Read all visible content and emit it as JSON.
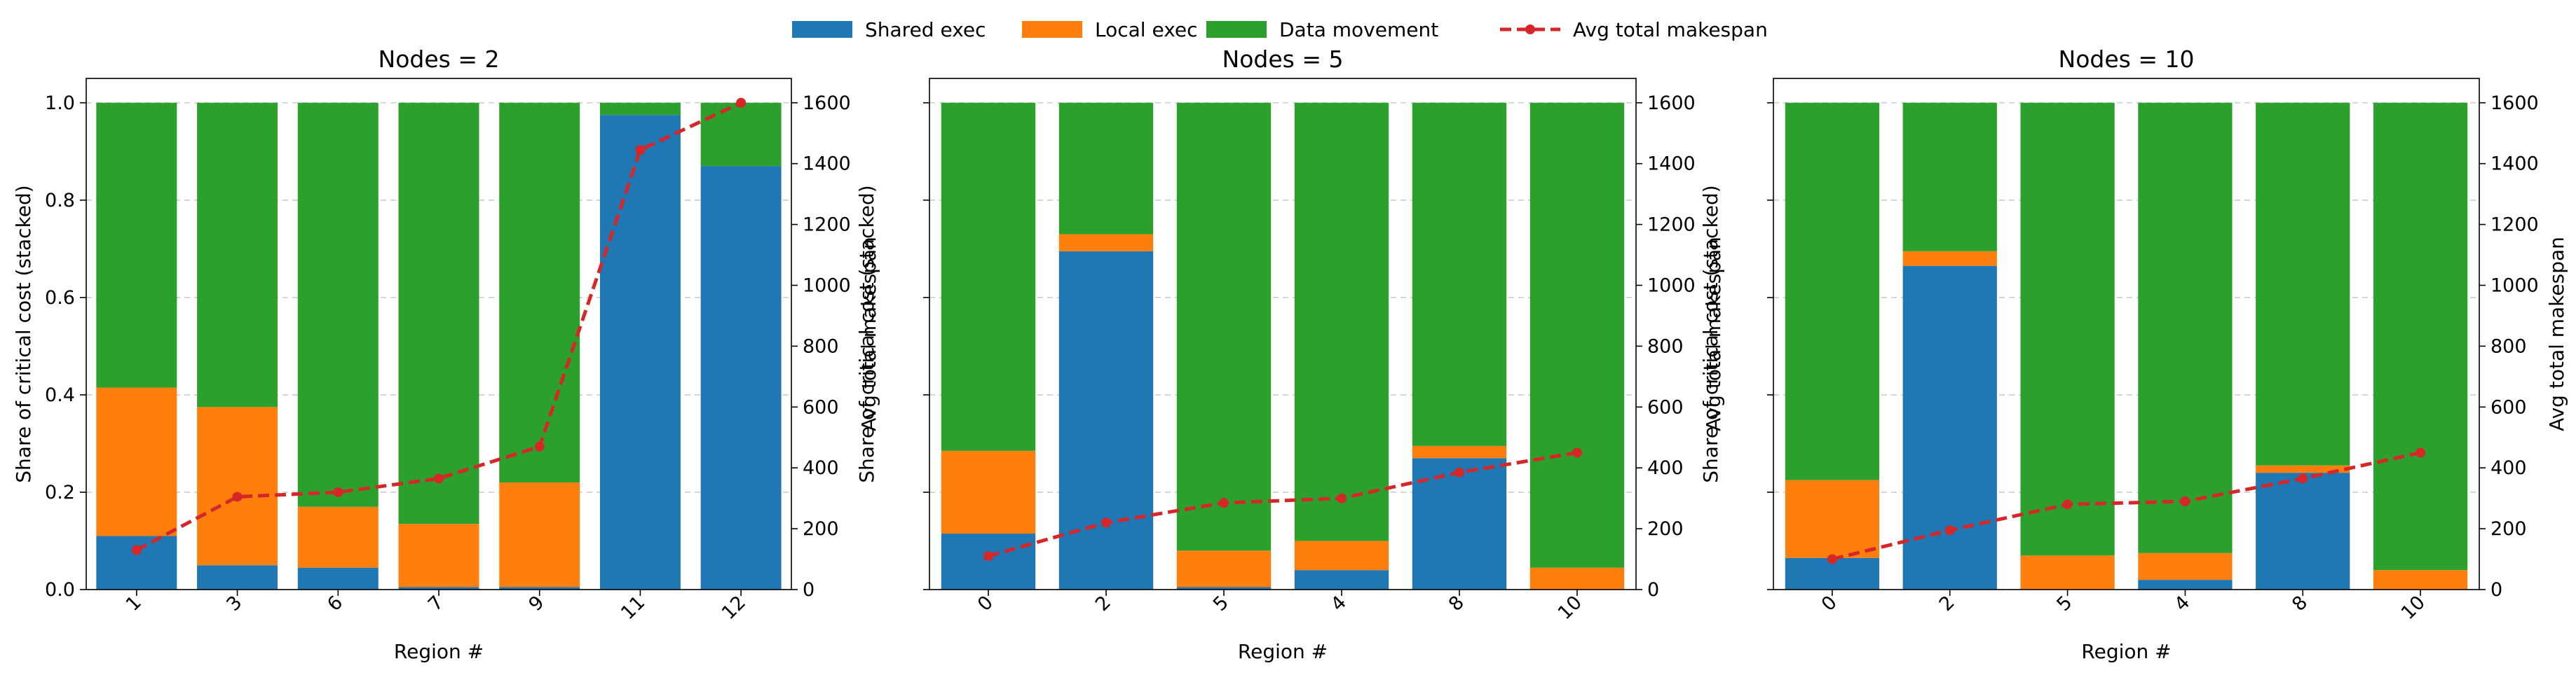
{
  "legend": {
    "placement": "top-center",
    "items": [
      {
        "label": "Shared exec",
        "color": "#1f77b4",
        "kind": "patch"
      },
      {
        "label": "Local exec",
        "color": "#ff7f0e",
        "kind": "patch"
      },
      {
        "label": "Data movement",
        "color": "#2ca02c",
        "kind": "patch"
      },
      {
        "label": "Avg total makespan",
        "color": "#d62728",
        "kind": "line"
      }
    ]
  },
  "chart_data": [
    {
      "type": "bar",
      "stacked": true,
      "title": "Nodes = 2",
      "xlabel": "Region #",
      "ylabel": "Share of critical cost (stacked)",
      "ylabel_right": "Avg total makespan",
      "ylim": [
        0,
        1.05
      ],
      "ylim_right": [
        0,
        1680
      ],
      "yticks": [
        "0.0",
        "0.2",
        "0.4",
        "0.6",
        "0.8",
        "1.0"
      ],
      "yticks_right": [
        "0",
        "200",
        "400",
        "600",
        "800",
        "1000",
        "1200",
        "1400",
        "1600"
      ],
      "grid": true,
      "categories": [
        "1",
        "3",
        "6",
        "7",
        "9",
        "11",
        "12"
      ],
      "series": [
        {
          "name": "Shared exec",
          "values": [
            0.11,
            0.05,
            0.045,
            0.005,
            0.005,
            0.975,
            0.87
          ]
        },
        {
          "name": "Local exec",
          "values": [
            0.305,
            0.325,
            0.125,
            0.13,
            0.215,
            0.0,
            0.0
          ]
        },
        {
          "name": "Data movement",
          "values": [
            0.585,
            0.625,
            0.83,
            0.865,
            0.78,
            0.025,
            0.13
          ]
        }
      ],
      "line": {
        "name": "Avg total makespan",
        "values": [
          130,
          305,
          320,
          365,
          470,
          1445,
          1600
        ]
      }
    },
    {
      "type": "bar",
      "stacked": true,
      "title": "Nodes = 5",
      "xlabel": "Region #",
      "ylabel": "Share of critical cost (stacked)",
      "ylabel_right": "Avg total makespan",
      "ylim": [
        0,
        1.05
      ],
      "ylim_right": [
        0,
        1680
      ],
      "yticks": [
        "",
        "",
        "",
        "",
        "",
        ""
      ],
      "yticks_right": [
        "0",
        "200",
        "400",
        "600",
        "800",
        "1000",
        "1200",
        "1400",
        "1600"
      ],
      "grid": true,
      "categories": [
        "0",
        "2",
        "5",
        "4",
        "8",
        "10"
      ],
      "series": [
        {
          "name": "Shared exec",
          "values": [
            0.115,
            0.695,
            0.005,
            0.04,
            0.27,
            0.0
          ]
        },
        {
          "name": "Local exec",
          "values": [
            0.17,
            0.035,
            0.075,
            0.06,
            0.025,
            0.045
          ]
        },
        {
          "name": "Data movement",
          "values": [
            0.715,
            0.27,
            0.92,
            0.9,
            0.705,
            0.955
          ]
        }
      ],
      "line": {
        "name": "Avg total makespan",
        "values": [
          110,
          220,
          285,
          300,
          385,
          450
        ]
      }
    },
    {
      "type": "bar",
      "stacked": true,
      "title": "Nodes = 10",
      "xlabel": "Region #",
      "ylabel": "Share of critical cost (stacked)",
      "ylabel_right": "Avg total makespan",
      "ylim": [
        0,
        1.05
      ],
      "ylim_right": [
        0,
        1680
      ],
      "yticks": [
        "",
        "",
        "",
        "",
        "",
        ""
      ],
      "yticks_right": [
        "0",
        "200",
        "400",
        "600",
        "800",
        "1000",
        "1200",
        "1400",
        "1600"
      ],
      "grid": true,
      "categories": [
        "0",
        "2",
        "5",
        "4",
        "8",
        "10"
      ],
      "series": [
        {
          "name": "Shared exec",
          "values": [
            0.065,
            0.665,
            0.0,
            0.02,
            0.24,
            0.0
          ]
        },
        {
          "name": "Local exec",
          "values": [
            0.16,
            0.03,
            0.07,
            0.055,
            0.015,
            0.04
          ]
        },
        {
          "name": "Data movement",
          "values": [
            0.775,
            0.305,
            0.93,
            0.925,
            0.745,
            0.96
          ]
        }
      ],
      "line": {
        "name": "Avg total makespan",
        "values": [
          100,
          195,
          280,
          290,
          365,
          450
        ]
      }
    }
  ]
}
